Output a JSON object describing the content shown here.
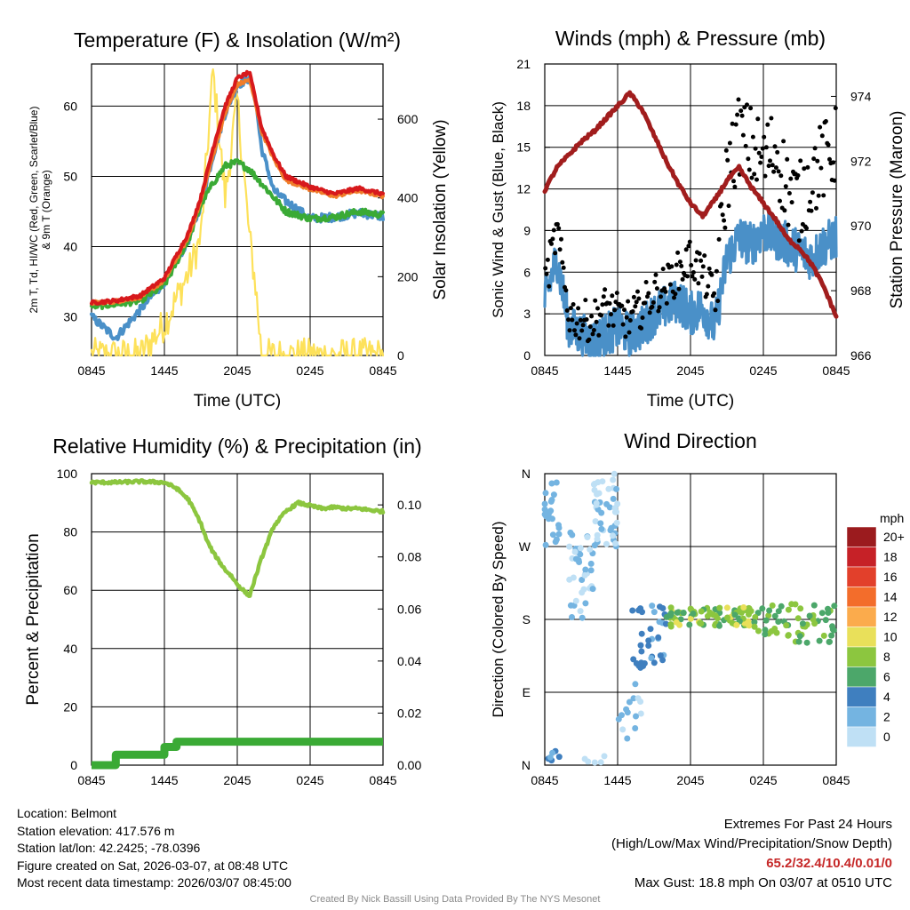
{
  "colors": {
    "t2m": "#d7191c",
    "green": "#3aaa35",
    "blue": "#4a90c8",
    "orange": "#f07d2a",
    "solar": "#fde15a",
    "pressure": "#a11d1d",
    "gust": "#000000",
    "sonic": "#4a90c8",
    "rh": "#8cc63f",
    "precip": "#3aaa35"
  },
  "chart_data": [
    {
      "id": "temperature",
      "type": "line",
      "title": "Temperature (F) & Insolation (W/m²)",
      "xlabel": "Time (UTC)",
      "ylabel": "2m T, Td, HI/WC (Red, Green, Scarlet/Blue) & 9m T (Orange)",
      "ylabel_right": "Solar Insolation (Yellow)",
      "x_ticks": [
        "0845",
        "1445",
        "2045",
        "0245",
        "0845"
      ],
      "ylim": [
        24.5,
        66
      ],
      "ylim_right": [
        0,
        740
      ],
      "y_ticks": [
        30,
        40,
        50,
        60
      ],
      "y_ticks_right": [
        0,
        200,
        400,
        600
      ],
      "x_hours": [
        0,
        2,
        4,
        6,
        8,
        9,
        10,
        11,
        12,
        13,
        13.5,
        14,
        15,
        16,
        18,
        20,
        22,
        24
      ],
      "series": [
        {
          "name": "2m T (Red)",
          "color": "t2m",
          "axis": "left",
          "values": [
            32,
            32.3,
            33,
            35.5,
            42,
            47,
            54,
            60,
            64,
            64.8,
            61,
            57,
            53,
            50,
            48.5,
            47.5,
            48.3,
            47.5
          ]
        },
        {
          "name": "9m T (Orange)",
          "color": "orange",
          "axis": "left",
          "values": [
            32,
            32.2,
            32.8,
            35.2,
            41.5,
            46.5,
            53,
            59,
            63,
            63.8,
            60.5,
            56.5,
            52.5,
            49.5,
            48.2,
            47.2,
            48,
            47.2
          ]
        },
        {
          "name": "Dewpoint Td (Green)",
          "color": "green",
          "axis": "left",
          "values": [
            31.5,
            31.8,
            32.3,
            34.5,
            41,
            46,
            49,
            51.5,
            52,
            51,
            50,
            49,
            47,
            45,
            44,
            44.2,
            45,
            44.5
          ]
        },
        {
          "name": "Wind Chill (Blue)",
          "color": "blue",
          "axis": "left",
          "values": [
            30,
            27,
            31,
            35,
            41,
            46,
            53,
            59,
            63,
            64,
            61,
            54,
            48,
            46.5,
            44,
            44.2,
            44.8,
            44.3
          ]
        },
        {
          "name": "Solar Insolation (Yellow)",
          "color": "solar",
          "axis": "right",
          "values": [
            0,
            0,
            0,
            80,
            210,
            300,
            720,
            400,
            650,
            300,
            180,
            0,
            0,
            0,
            0,
            0,
            0,
            0
          ]
        }
      ]
    },
    {
      "id": "winds",
      "type": "line",
      "title": "Winds (mph) & Pressure (mb)",
      "xlabel": "Time (UTC)",
      "ylabel": "Sonic Wind & Gust (Blue, Black)",
      "ylabel_right": "Station Pressure (Maroon)",
      "x_ticks": [
        "0845",
        "1445",
        "2045",
        "0245",
        "0845"
      ],
      "ylim": [
        0,
        21
      ],
      "ylim_right": [
        966,
        975
      ],
      "y_ticks": [
        0,
        3,
        6,
        9,
        12,
        15,
        18,
        21
      ],
      "y_ticks_right": [
        966,
        968,
        970,
        972,
        974
      ],
      "x_hours": [
        0,
        1,
        2,
        3,
        4,
        5,
        6,
        7,
        8,
        9,
        10,
        11,
        12,
        13,
        14,
        15,
        16,
        17,
        18,
        19,
        20,
        21,
        22,
        23,
        24
      ],
      "series": [
        {
          "name": "Sonic Wind (Blue)",
          "color": "sonic",
          "axis": "left",
          "values": [
            4,
            7,
            2,
            1.5,
            1,
            1.5,
            2,
            1.5,
            2,
            3,
            3.5,
            4,
            3,
            3.5,
            2,
            7,
            8.5,
            8,
            9,
            8.5,
            8,
            7.5,
            7,
            8,
            8.5
          ]
        },
        {
          "name": "Gust (Black)",
          "color": "gust",
          "axis": "left",
          "values": [
            5,
            9,
            3,
            2.5,
            2.5,
            3.5,
            3,
            2.5,
            3.5,
            4.5,
            5,
            6,
            7,
            6,
            4,
            13,
            16,
            15,
            14,
            15,
            12,
            11,
            13,
            14,
            15
          ]
        },
        {
          "name": "Station Pressure (Maroon)",
          "color": "pressure",
          "axis": "right",
          "values": [
            971.1,
            971.8,
            972.2,
            972.6,
            972.9,
            973.3,
            973.7,
            974.1,
            973.6,
            972.8,
            972,
            971.3,
            970.7,
            970.3,
            970.8,
            971.4,
            971.8,
            971.2,
            970.7,
            970.2,
            969.6,
            969.3,
            968.8,
            968.1,
            967.2
          ]
        }
      ]
    },
    {
      "id": "humidity",
      "type": "line",
      "title": "Relative Humidity (%) & Precipitation (in)",
      "xlabel": "",
      "ylabel": "Percent & Precipitation",
      "x_ticks": [
        "0845",
        "1445",
        "2045",
        "0245",
        "0845"
      ],
      "ylim": [
        0,
        100
      ],
      "ylim_right": [
        0,
        0.112
      ],
      "y_ticks": [
        0,
        20,
        40,
        60,
        80,
        100
      ],
      "y_ticks_right": [
        "0.00",
        "0.02",
        "0.04",
        "0.06",
        "0.08",
        "0.10"
      ],
      "x_hours": [
        0,
        2,
        4,
        6,
        7,
        8,
        9,
        9.5,
        10,
        10.5,
        11,
        11.5,
        12,
        12.5,
        13,
        14,
        15,
        16,
        17,
        18,
        19,
        20,
        21,
        22,
        23,
        24
      ],
      "series": [
        {
          "name": "Relative Humidity",
          "color": "rh",
          "axis": "left",
          "values": [
            97,
            97,
            97.3,
            97,
            95,
            91,
            83,
            77,
            73,
            70,
            67,
            65,
            62,
            60,
            58,
            71,
            82,
            87,
            90,
            89,
            88,
            88.5,
            88,
            88,
            87.5,
            87
          ]
        },
        {
          "name": "Precipitation",
          "color": "precip",
          "axis": "right",
          "values": [
            0,
            0.004,
            0.004,
            0.007,
            0.009,
            0.009,
            0.009,
            0.009,
            0.009,
            0.009,
            0.009,
            0.009,
            0.009,
            0.009,
            0.009,
            0.009,
            0.009,
            0.009,
            0.009,
            0.009,
            0.009,
            0.009,
            0.009,
            0.009,
            0.009,
            0.009
          ]
        }
      ]
    },
    {
      "id": "direction",
      "type": "scatter",
      "title": "Wind Direction",
      "xlabel": "",
      "ylabel": "Direction (Colored By Speed)",
      "x_ticks": [
        "0845",
        "1445",
        "2045",
        "0245",
        "0845"
      ],
      "y_ticks": [
        "N",
        "E",
        "S",
        "W",
        "N"
      ],
      "ylim_deg": [
        0,
        360
      ],
      "legend_title": "mph",
      "legend_labels": [
        "20+",
        "18",
        "16",
        "14",
        "12",
        "10",
        "8",
        "6",
        "4",
        "2",
        "0"
      ],
      "legend_colors": [
        "#9b1b1e",
        "#c62127",
        "#e2402b",
        "#f36d2b",
        "#fbab4c",
        "#e9e05a",
        "#8cc63f",
        "#4ca76a",
        "#3f7fbf",
        "#74b4e1",
        "#bfe0f5"
      ],
      "clusters": [
        {
          "hours": [
            0,
            1.2
          ],
          "deg": [
            270,
            360
          ],
          "speed": [
            1,
            3
          ],
          "n": 22
        },
        {
          "hours": [
            0,
            1.2
          ],
          "deg": [
            0,
            20
          ],
          "speed": [
            2,
            5
          ],
          "n": 7
        },
        {
          "hours": [
            2,
            4
          ],
          "deg": [
            180,
            290
          ],
          "speed": [
            0,
            3
          ],
          "n": 40
        },
        {
          "hours": [
            4,
            6
          ],
          "deg": [
            270,
            360
          ],
          "speed": [
            0,
            2
          ],
          "n": 45
        },
        {
          "hours": [
            3,
            5
          ],
          "deg": [
            0,
            20
          ],
          "speed": [
            0,
            1
          ],
          "n": 5
        },
        {
          "hours": [
            6,
            8
          ],
          "deg": [
            30,
            110
          ],
          "speed": [
            0,
            3
          ],
          "n": 14
        },
        {
          "hours": [
            7,
            10
          ],
          "deg": [
            120,
            200
          ],
          "speed": [
            2,
            5
          ],
          "n": 35
        },
        {
          "hours": [
            10,
            17
          ],
          "deg": [
            170,
            195
          ],
          "speed": [
            6,
            10
          ],
          "n": 80
        },
        {
          "hours": [
            17,
            24
          ],
          "deg": [
            150,
            200
          ],
          "speed": [
            5,
            9
          ],
          "n": 60
        }
      ]
    }
  ],
  "info": {
    "location": "Location: Belmont",
    "elevation": "Station elevation: 417.576 m",
    "latlon": "Station lat/lon: 42.2425; -78.0396",
    "created": "Figure created on Sat, 2026-03-07, at 08:48 UTC",
    "recent": "Most recent data timestamp: 2026/03/07 08:45:00"
  },
  "extremes": {
    "title": "Extremes For Past 24 Hours",
    "subtitle": "(High/Low/Max Wind/Precipitation/Snow Depth)",
    "values": "65.2/32.4/10.4/0.01/0",
    "max_gust": "Max Gust: 18.8 mph On 03/07 at 0510 UTC"
  },
  "credit": "Created By Nick Bassill Using Data Provided By The NYS Mesonet"
}
